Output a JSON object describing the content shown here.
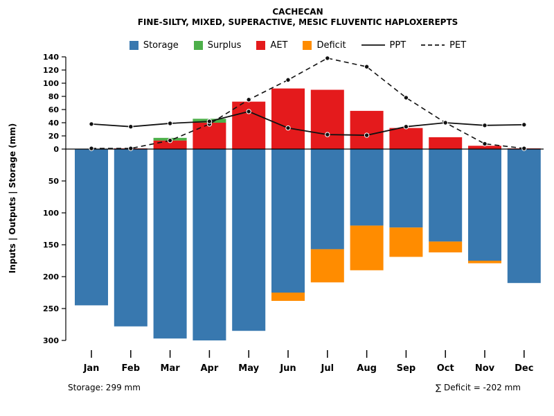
{
  "chart_data": {
    "type": "bar+line",
    "title": "CACHECAN",
    "subtitle": "FINE-SILTY, MIXED, SUPERACTIVE, MESIC FLUVENTIC HAPLOXEREPTS",
    "ylabel": "Inputs | Outputs | Storage  (mm)",
    "categories": [
      "Jan",
      "Feb",
      "Mar",
      "Apr",
      "May",
      "Jun",
      "Jul",
      "Aug",
      "Sep",
      "Oct",
      "Nov",
      "Dec"
    ],
    "series": {
      "storage": [
        245,
        278,
        297,
        300,
        285,
        225,
        157,
        120,
        123,
        145,
        175,
        210
      ],
      "deficit": [
        0,
        0,
        0,
        0,
        0,
        13,
        52,
        70,
        46,
        17,
        4,
        0
      ],
      "aet": [
        0,
        1,
        13,
        40,
        72,
        92,
        90,
        58,
        32,
        18,
        5,
        1
      ],
      "surplus": [
        0,
        0,
        4,
        6,
        0,
        0,
        0,
        0,
        0,
        0,
        0,
        0
      ],
      "ppt": [
        38,
        34,
        39,
        42,
        57,
        32,
        22,
        21,
        34,
        40,
        36,
        37
      ],
      "pet": [
        1,
        1,
        13,
        38,
        75,
        105,
        138,
        125,
        78,
        40,
        8,
        1
      ]
    },
    "axis": {
      "pos_ticks": [
        0,
        20,
        40,
        60,
        80,
        100,
        120,
        140
      ],
      "neg_ticks": [
        50,
        100,
        150,
        200,
        250,
        300
      ],
      "pos_max": 140,
      "neg_max": 300
    },
    "colors": {
      "storage": "#3878af",
      "surplus": "#4daf4a",
      "aet": "#e41a1c",
      "deficit": "#ff8c00",
      "line": "#111111"
    },
    "legend": [
      {
        "label": "Storage",
        "swatch": "box",
        "color": "#3878af"
      },
      {
        "label": "Surplus",
        "swatch": "box",
        "color": "#4daf4a"
      },
      {
        "label": "AET",
        "swatch": "box",
        "color": "#e41a1c"
      },
      {
        "label": "Deficit",
        "swatch": "box",
        "color": "#ff8c00"
      },
      {
        "label": "PPT",
        "swatch": "solid-line",
        "color": "#111111"
      },
      {
        "label": "PET",
        "swatch": "dashed-line",
        "color": "#111111"
      }
    ]
  },
  "footer": {
    "storage_note": "Storage: 299 mm",
    "deficit_note": "∑ Deficit = -202 mm"
  }
}
